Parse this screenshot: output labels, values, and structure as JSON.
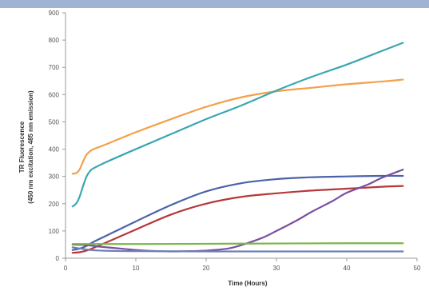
{
  "chart_data": {
    "type": "line",
    "xlabel": "Time (Hours)",
    "ylabel_lines": [
      "TR Fluorescence",
      "(450 nm excitation, 485 nm emission)"
    ],
    "xlim": [
      0,
      50
    ],
    "ylim": [
      0,
      900
    ],
    "xticks": [
      0,
      10,
      20,
      30,
      40,
      50
    ],
    "yticks": [
      0,
      100,
      200,
      300,
      400,
      500,
      600,
      700,
      800,
      900
    ],
    "legend": "none",
    "grid": false,
    "series": [
      {
        "color": "#f4a04a",
        "x": [
          1,
          1.5,
          2,
          2.5,
          3,
          3.5,
          4,
          6,
          10,
          15,
          20,
          25,
          30,
          35,
          40,
          45,
          48
        ],
        "y": [
          310,
          312,
          325,
          355,
          380,
          392,
          400,
          420,
          462,
          510,
          555,
          590,
          612,
          625,
          638,
          648,
          655
        ]
      },
      {
        "color": "#3aa6b3",
        "x": [
          1,
          1.5,
          2,
          2.5,
          3,
          3.5,
          4,
          6,
          10,
          15,
          20,
          25,
          30,
          35,
          40,
          45,
          48
        ],
        "y": [
          190,
          200,
          225,
          265,
          300,
          320,
          330,
          355,
          400,
          455,
          510,
          560,
          615,
          665,
          710,
          760,
          790
        ]
      },
      {
        "color": "#4a63a8",
        "x": [
          1,
          2,
          3,
          4,
          6,
          10,
          15,
          20,
          25,
          30,
          35,
          40,
          45,
          48
        ],
        "y": [
          30,
          35,
          45,
          60,
          85,
          135,
          195,
          245,
          275,
          290,
          297,
          300,
          302,
          302
        ]
      },
      {
        "color": "#b5373b",
        "x": [
          1,
          2,
          3,
          4,
          6,
          10,
          15,
          20,
          25,
          30,
          35,
          40,
          45,
          48
        ],
        "y": [
          20,
          22,
          28,
          38,
          60,
          105,
          160,
          200,
          225,
          238,
          248,
          255,
          262,
          265
        ]
      },
      {
        "color": "#7a4fa0",
        "x": [
          1,
          3,
          5,
          8,
          10,
          12,
          15,
          18,
          20,
          23,
          25,
          28,
          30,
          33,
          35,
          38,
          40,
          43,
          45,
          48
        ],
        "y": [
          50,
          48,
          42,
          35,
          30,
          27,
          25,
          26,
          28,
          35,
          48,
          75,
          100,
          140,
          170,
          210,
          240,
          270,
          295,
          325
        ]
      },
      {
        "color": "#7ab648",
        "x": [
          1,
          10,
          20,
          30,
          40,
          48
        ],
        "y": [
          52,
          52,
          53,
          54,
          55,
          55
        ]
      },
      {
        "color": "#6f7fb7",
        "x": [
          1,
          3,
          5,
          10,
          20,
          30,
          40,
          48
        ],
        "y": [
          40,
          32,
          28,
          26,
          25,
          25,
          25,
          25
        ]
      }
    ]
  }
}
